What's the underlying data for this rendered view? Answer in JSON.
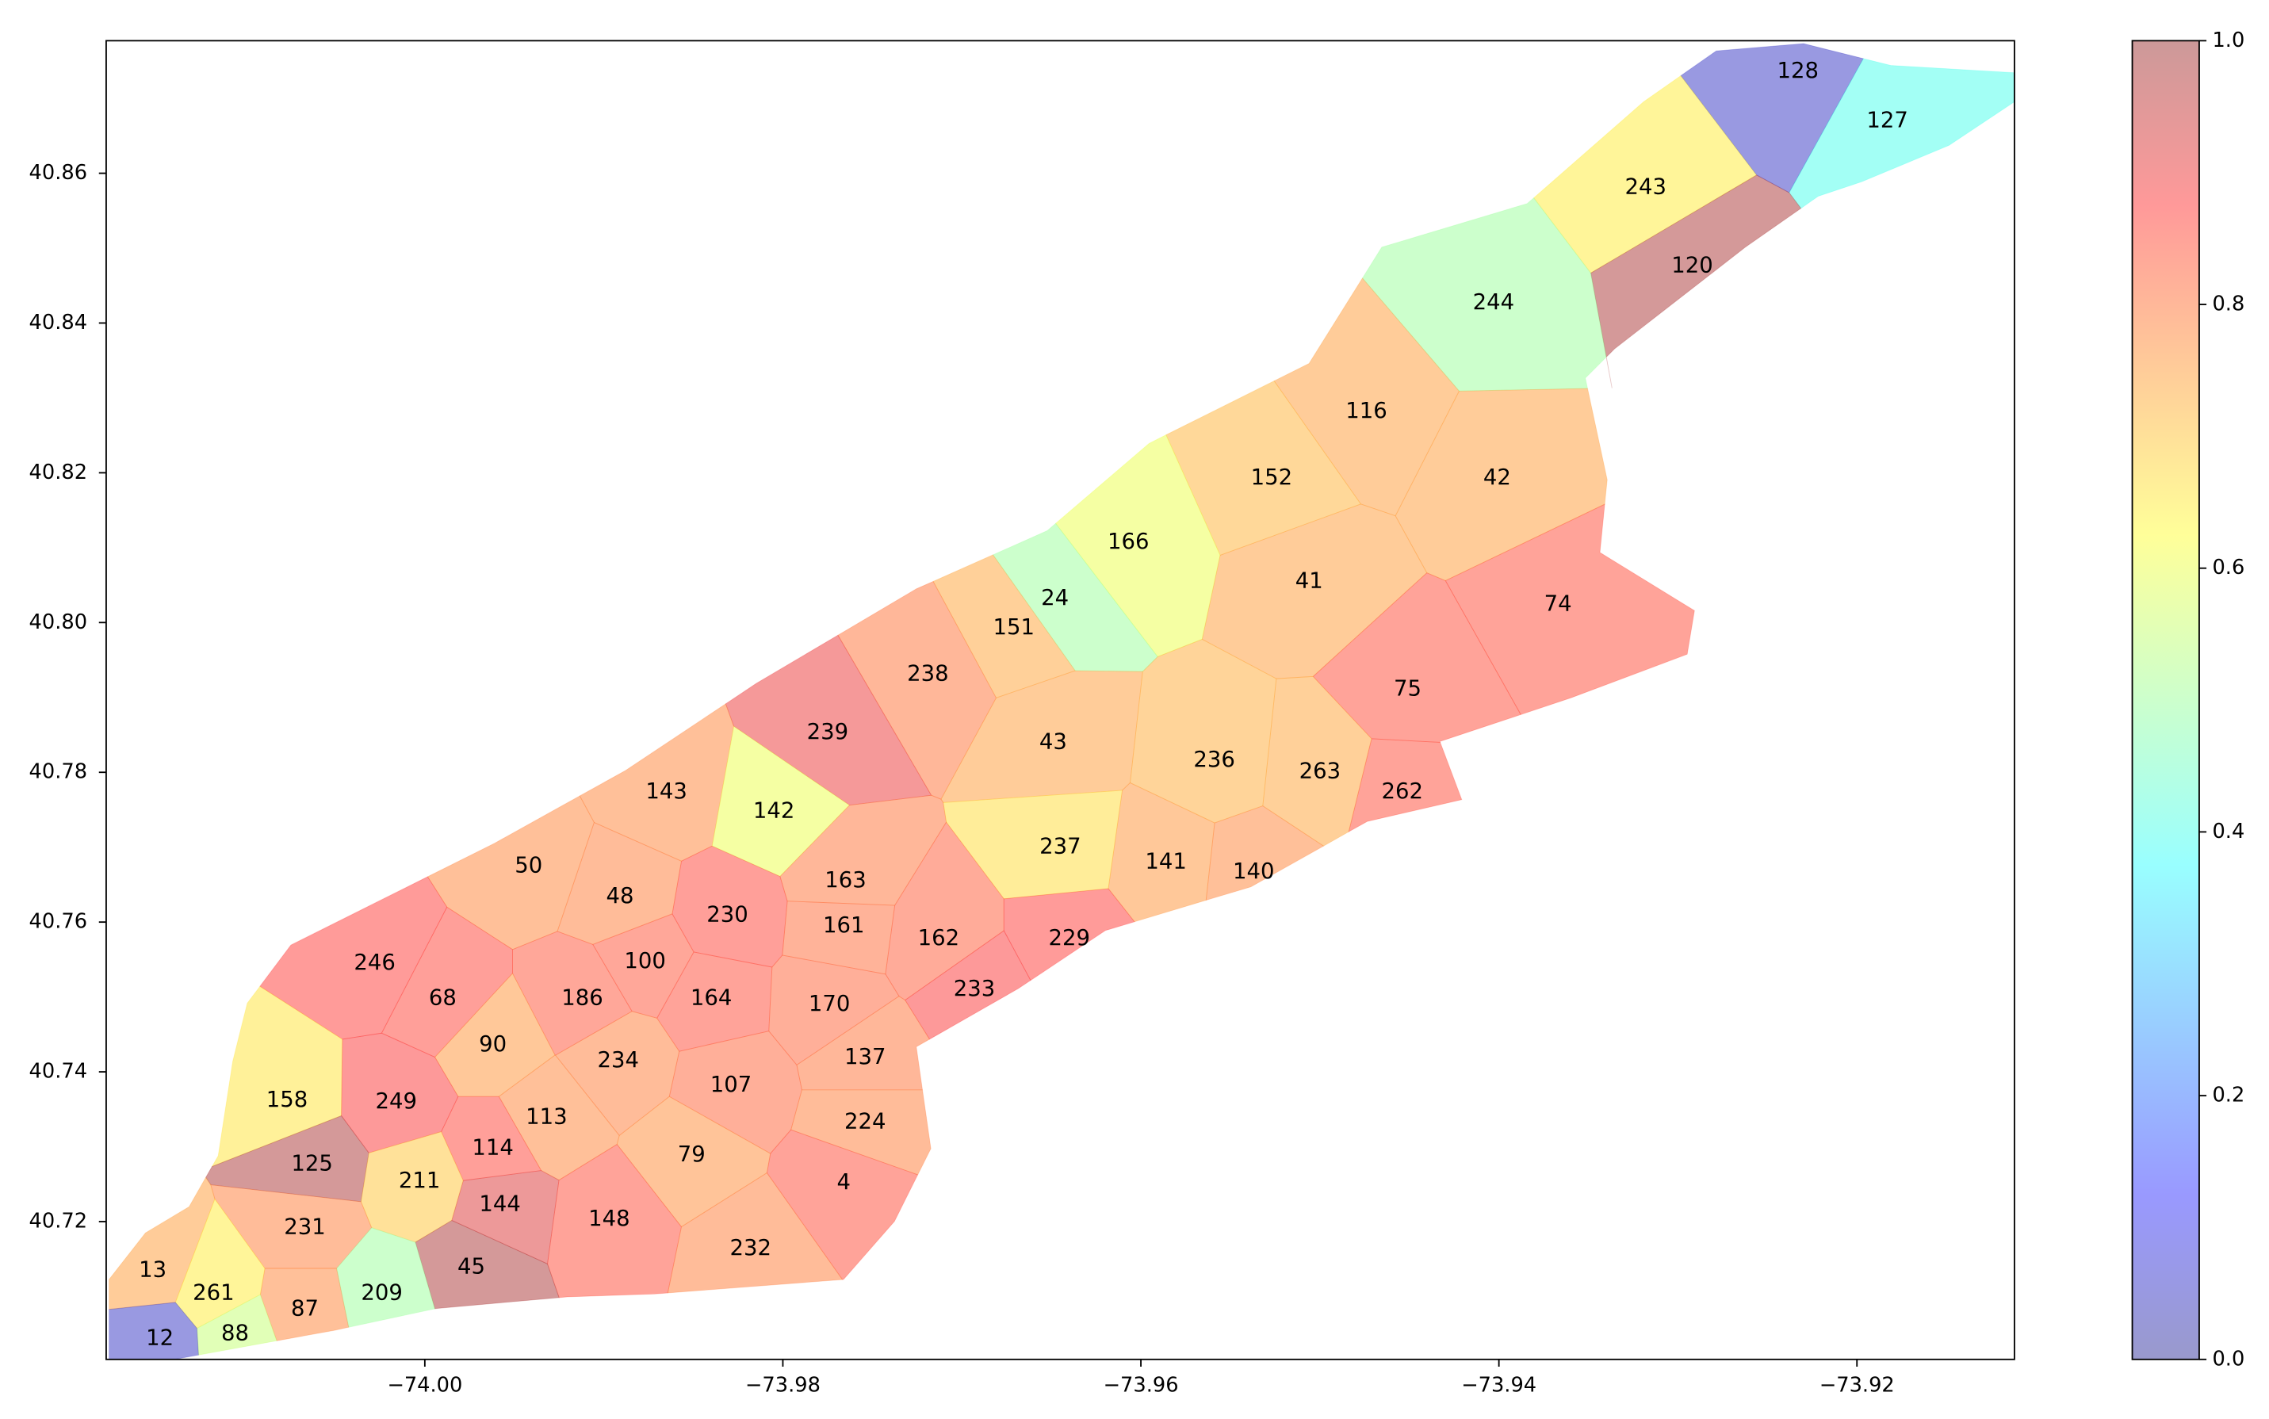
{
  "chart_data": {
    "type": "map",
    "colormap": "jet",
    "alpha": 0.4,
    "labels": [
      "128",
      "127",
      "243",
      "120",
      "244",
      "116",
      "152",
      "42",
      "166",
      "41",
      "24",
      "74",
      "151",
      "238",
      "75",
      "239",
      "43",
      "236",
      "263",
      "143",
      "262",
      "142",
      "237",
      "141",
      "50",
      "140",
      "163",
      "48",
      "230",
      "161",
      "162",
      "229",
      "100",
      "246",
      "233",
      "68",
      "186",
      "164",
      "170",
      "90",
      "137",
      "234",
      "107",
      "158",
      "249",
      "113",
      "224",
      "114",
      "79",
      "125",
      "211",
      "4",
      "144",
      "148",
      "231",
      "232",
      "45",
      "13",
      "261",
      "209",
      "87",
      "88",
      "12"
    ],
    "x": [
      -73.9233,
      -73.9183,
      -73.9318,
      -73.9292,
      -73.9403,
      -73.9474,
      -73.9527,
      -73.9401,
      -73.9607,
      -73.9506,
      -73.9648,
      -73.9367,
      -73.9671,
      -73.9719,
      -73.9451,
      -73.9775,
      -73.9649,
      -73.9559,
      -73.95,
      -73.9865,
      -73.9454,
      -73.9805,
      -73.9645,
      -73.9586,
      -73.9942,
      -73.9537,
      -73.9765,
      -73.9891,
      -73.9831,
      -73.9766,
      -73.9713,
      -73.964,
      -73.9877,
      -74.0028,
      -73.9693,
      -73.999,
      -73.9912,
      -73.984,
      -73.9774,
      -73.9962,
      -73.9754,
      -73.9892,
      -73.9829,
      -74.0077,
      -74.0016,
      -73.9932,
      -73.9754,
      -73.9962,
      -73.9851,
      -74.0063,
      -74.0003,
      -73.9766,
      -73.9958,
      -73.9897,
      -74.0067,
      -73.9818,
      -73.9974,
      -74.0152,
      -74.0118,
      -74.0024,
      -74.0067,
      -74.0106,
      -74.0148
    ],
    "y": [
      40.8736,
      40.867,
      40.8581,
      40.8476,
      40.8427,
      40.8282,
      40.8193,
      40.8193,
      40.8107,
      40.8055,
      40.8032,
      40.8024,
      40.7993,
      40.7931,
      40.7911,
      40.7853,
      40.784,
      40.7816,
      40.7801,
      40.7774,
      40.7774,
      40.7748,
      40.77,
      40.768,
      40.7675,
      40.7667,
      40.7655,
      40.7634,
      40.7609,
      40.7595,
      40.7578,
      40.7578,
      40.7547,
      40.7545,
      40.751,
      40.7498,
      40.7498,
      40.7498,
      40.749,
      40.7436,
      40.7419,
      40.7415,
      40.7382,
      40.7362,
      40.736,
      40.7339,
      40.7333,
      40.7298,
      40.7289,
      40.7277,
      40.7254,
      40.7252,
      40.7223,
      40.7203,
      40.7192,
      40.7164,
      40.7139,
      40.7135,
      40.7104,
      40.7104,
      40.7083,
      40.705,
      40.7044
    ],
    "values": [
      0.05,
      0.4,
      0.65,
      0.98,
      0.5,
      0.75,
      0.72,
      0.75,
      0.6,
      0.75,
      0.5,
      0.85,
      0.74,
      0.8,
      0.85,
      0.9,
      0.75,
      0.73,
      0.74,
      0.78,
      0.85,
      0.6,
      0.67,
      0.76,
      0.78,
      0.78,
      0.8,
      0.79,
      0.86,
      0.81,
      0.83,
      0.87,
      0.84,
      0.87,
      0.88,
      0.86,
      0.84,
      0.85,
      0.82,
      0.76,
      0.8,
      0.79,
      0.82,
      0.66,
      0.88,
      0.78,
      0.79,
      0.86,
      0.77,
      0.98,
      0.7,
      0.85,
      0.92,
      0.85,
      0.79,
      0.79,
      0.98,
      0.75,
      0.65,
      0.5,
      0.78,
      0.55,
      0.05
    ],
    "xlim": [
      -74.0178,
      -73.9112
    ],
    "xticks": [
      {
        "value": -74.0,
        "label": "−74.00"
      },
      {
        "value": -73.98,
        "label": "−73.98"
      },
      {
        "value": -73.96,
        "label": "−73.96"
      },
      {
        "value": -73.94,
        "label": "−73.94"
      },
      {
        "value": -73.92,
        "label": "−73.92"
      }
    ],
    "ylim": [
      40.7016,
      40.8777
    ],
    "yticks": [
      {
        "value": 40.72,
        "label": "40.72"
      },
      {
        "value": 40.74,
        "label": "40.74"
      },
      {
        "value": 40.76,
        "label": "40.76"
      },
      {
        "value": 40.78,
        "label": "40.78"
      },
      {
        "value": 40.8,
        "label": "40.80"
      },
      {
        "value": 40.82,
        "label": "40.82"
      },
      {
        "value": 40.84,
        "label": "40.84"
      },
      {
        "value": 40.86,
        "label": "40.86"
      }
    ],
    "colorbar_lim": [
      0,
      1
    ],
    "colorbar_ticks": [
      {
        "value": 0,
        "label": "0.0"
      },
      {
        "value": 0.2,
        "label": "0.2"
      },
      {
        "value": 0.4,
        "label": "0.4"
      },
      {
        "value": 0.6,
        "label": "0.6"
      },
      {
        "value": 0.8,
        "label": "0.8"
      },
      {
        "value": 1,
        "label": "1.0"
      }
    ]
  }
}
